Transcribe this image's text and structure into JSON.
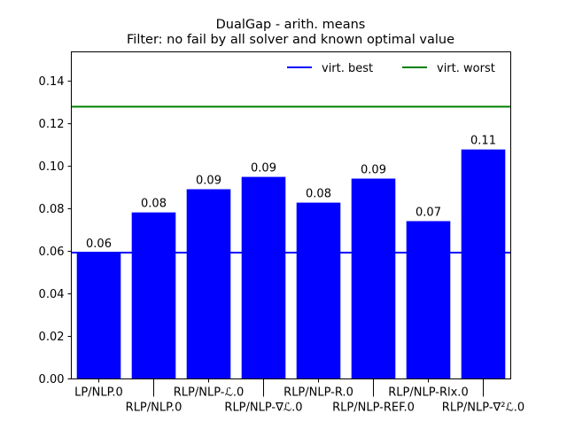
{
  "chart_data": {
    "type": "bar",
    "title": "DualGap - arith. means",
    "subtitle": "Filter: no fail by all solver and known optimal value",
    "xlabel": "",
    "ylabel": "",
    "categories": [
      "LP/NLP.0",
      "RLP/NLP.0",
      "RLP/NLP-ℒ.0",
      "RLP/NLP-∇ℒ.0",
      "RLP/NLP-R.0",
      "RLP/NLP-REF.0",
      "RLP/NLP-Rlx.0",
      "RLP/NLP-∇²ℒ.0"
    ],
    "values": [
      0.0594,
      0.0783,
      0.0892,
      0.095,
      0.0829,
      0.0942,
      0.0742,
      0.1079
    ],
    "data_labels": [
      "0.06",
      "0.08",
      "0.09",
      "0.09",
      "0.08",
      "0.09",
      "0.07",
      "0.11"
    ],
    "bar_color": "#0000ff",
    "ylim": [
      0,
      0.1538
    ],
    "yticks": [
      0.0,
      0.02,
      0.04,
      0.06,
      0.08,
      0.1,
      0.12,
      0.14
    ],
    "ytick_labels": [
      "0.00",
      "0.02",
      "0.04",
      "0.06",
      "0.08",
      "0.10",
      "0.12",
      "0.14"
    ],
    "grid": false,
    "legend_position": "top-right",
    "reference_lines": [
      {
        "name": "virt. best",
        "value": 0.0594,
        "color": "#0000ff"
      },
      {
        "name": "virt. worst",
        "value": 0.128,
        "color": "#008000"
      }
    ]
  }
}
